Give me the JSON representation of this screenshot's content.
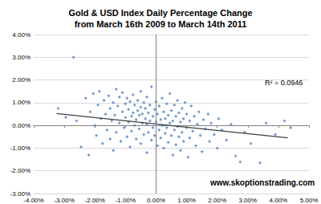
{
  "chart_data": {
    "type": "scatter",
    "title": "Gold & USD Index Daily Percentage Change\nfrom March 16th 2009 to March 14th 2011",
    "annotations": [
      "R² = 0.0946",
      "www.skoptionstrading.com"
    ],
    "color": "#4f81bd",
    "marker": "diamond",
    "grid": true,
    "xlim": [
      -4,
      5
    ],
    "ylim": [
      -3,
      4
    ],
    "xticks": [
      {
        "value": -4,
        "label": "-4.00%"
      },
      {
        "value": -3,
        "label": "-3.00%"
      },
      {
        "value": -2,
        "label": "-2.00%"
      },
      {
        "value": -1,
        "label": "-1.00%"
      },
      {
        "value": 0,
        "label": "0.00%"
      },
      {
        "value": 1,
        "label": "1.00%"
      },
      {
        "value": 2,
        "label": "2.00%"
      },
      {
        "value": 3,
        "label": "3.00%"
      },
      {
        "value": 4,
        "label": "4.00%"
      },
      {
        "value": 5,
        "label": "5.00%"
      }
    ],
    "yticks": [
      {
        "value": -3,
        "label": "-3.00%"
      },
      {
        "value": -2,
        "label": "-2.00%"
      },
      {
        "value": -1,
        "label": "-1.00%"
      },
      {
        "value": 0,
        "label": "0.00%"
      },
      {
        "value": 1,
        "label": "1.00%"
      },
      {
        "value": 2,
        "label": "2.00%"
      },
      {
        "value": 3,
        "label": "3.00%"
      },
      {
        "value": 4,
        "label": "4.00%"
      }
    ],
    "x": [
      -3.2,
      -2.7,
      -2.95,
      -2.6,
      -2.45,
      -2.3,
      -2.2,
      -2.15,
      -2.05,
      -2.0,
      -1.95,
      -1.9,
      -1.85,
      -1.8,
      -1.75,
      -1.7,
      -1.65,
      -1.6,
      -1.55,
      -1.5,
      -1.5,
      -1.45,
      -1.4,
      -1.4,
      -1.35,
      -1.3,
      -1.3,
      -1.25,
      -1.2,
      -1.2,
      -1.15,
      -1.1,
      -1.1,
      -1.05,
      -1.0,
      -1.0,
      -0.95,
      -0.95,
      -0.9,
      -0.9,
      -0.85,
      -0.85,
      -0.8,
      -0.8,
      -0.75,
      -0.75,
      -0.7,
      -0.7,
      -0.65,
      -0.65,
      -0.6,
      -0.6,
      -0.55,
      -0.55,
      -0.5,
      -0.5,
      -0.5,
      -0.45,
      -0.45,
      -0.4,
      -0.4,
      -0.35,
      -0.35,
      -0.3,
      -0.3,
      -0.3,
      -0.25,
      -0.25,
      -0.2,
      -0.2,
      -0.15,
      -0.15,
      -0.1,
      -0.1,
      -0.05,
      -0.05,
      0.0,
      0.0,
      0.05,
      0.05,
      0.1,
      0.1,
      0.15,
      0.15,
      0.2,
      0.2,
      0.25,
      0.25,
      0.3,
      0.3,
      0.35,
      0.35,
      0.4,
      0.4,
      0.45,
      0.45,
      0.5,
      0.5,
      0.55,
      0.55,
      0.6,
      0.6,
      0.65,
      0.65,
      0.7,
      0.7,
      0.75,
      0.75,
      0.8,
      0.8,
      0.85,
      0.85,
      0.9,
      0.9,
      0.95,
      1.0,
      1.0,
      1.05,
      1.1,
      1.1,
      1.15,
      1.2,
      1.25,
      1.3,
      1.35,
      1.4,
      1.45,
      1.5,
      1.55,
      1.6,
      1.7,
      1.75,
      1.8,
      1.9,
      2.0,
      2.05,
      2.15,
      2.3,
      2.45,
      2.6,
      2.75,
      2.9,
      3.1,
      3.4,
      3.6,
      3.9,
      4.2,
      4.4
    ],
    "values": [
      0.75,
      3.0,
      0.35,
      0.2,
      -0.95,
      1.2,
      -1.3,
      0.6,
      1.4,
      0.0,
      -0.45,
      0.9,
      1.5,
      0.3,
      -0.8,
      1.1,
      0.5,
      -0.2,
      1.3,
      0.75,
      -0.6,
      0.2,
      1.0,
      -1.1,
      0.45,
      1.6,
      -0.3,
      0.85,
      0.1,
      1.25,
      -0.7,
      0.6,
      1.45,
      -0.1,
      0.35,
      0.95,
      -0.5,
      1.2,
      0.15,
      0.7,
      -0.95,
      1.05,
      0.4,
      -0.25,
      1.35,
      0.55,
      0.0,
      0.9,
      -0.6,
      0.25,
      1.1,
      0.65,
      -0.15,
      0.45,
      1.5,
      0.8,
      -0.8,
      0.1,
      0.5,
      1.0,
      -0.4,
      0.3,
      0.75,
      -1.2,
      0.05,
      1.25,
      0.55,
      -0.3,
      0.9,
      0.2,
      -0.65,
      1.7,
      0.4,
      -0.1,
      0.7,
      -0.45,
      0.15,
      1.05,
      -0.9,
      0.5,
      -0.2,
      0.85,
      0.25,
      -0.55,
      1.2,
      0.0,
      0.6,
      -1.0,
      0.3,
      -0.35,
      0.95,
      -0.1,
      0.45,
      -0.75,
      0.1,
      1.4,
      -0.45,
      0.65,
      -1.3,
      0.2,
      0.9,
      -0.2,
      0.4,
      -0.85,
      -0.05,
      1.1,
      0.55,
      -0.5,
      0.15,
      -1.1,
      0.75,
      -0.3,
      0.3,
      -0.7,
      1.0,
      -0.1,
      0.5,
      -1.4,
      0.2,
      -0.55,
      0.85,
      -0.25,
      0.4,
      -0.9,
      0.05,
      0.6,
      -0.45,
      -1.15,
      0.25,
      -0.15,
      0.5,
      -0.7,
      0.1,
      -0.4,
      -1.0,
      0.3,
      -0.2,
      -0.65,
      0.05,
      -1.35,
      -1.6,
      -0.3,
      -0.8,
      -1.65,
      0.1,
      -0.4,
      0.2,
      -0.1
    ],
    "trendline": {
      "x": [
        -3.25,
        4.3
      ],
      "values": [
        0.52,
        -0.55
      ],
      "color": "#404040",
      "line_style": "solid"
    }
  }
}
